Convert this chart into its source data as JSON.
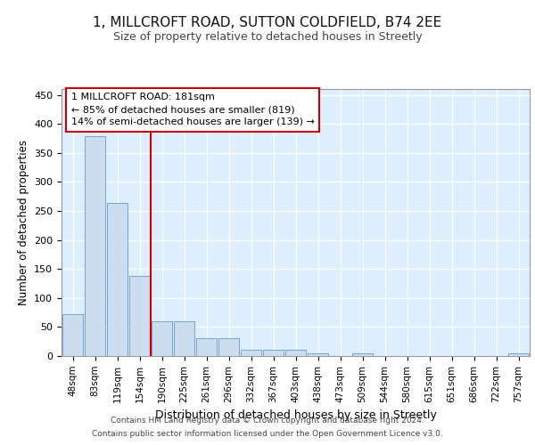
{
  "title1": "1, MILLCROFT ROAD, SUTTON COLDFIELD, B74 2EE",
  "title2": "Size of property relative to detached houses in Streetly",
  "xlabel": "Distribution of detached houses by size in Streetly",
  "ylabel": "Number of detached properties",
  "bar_color": "#ccddf0",
  "bar_edge_color": "#6699cc",
  "bg_color": "#ddeeff",
  "vline_color": "#cc0000",
  "vline_x_idx": 4,
  "categories": [
    "48sqm",
    "83sqm",
    "119sqm",
    "154sqm",
    "190sqm",
    "225sqm",
    "261sqm",
    "296sqm",
    "332sqm",
    "367sqm",
    "403sqm",
    "438sqm",
    "473sqm",
    "509sqm",
    "544sqm",
    "580sqm",
    "615sqm",
    "651sqm",
    "686sqm",
    "722sqm",
    "757sqm"
  ],
  "values": [
    72,
    378,
    263,
    138,
    60,
    60,
    30,
    30,
    10,
    10,
    10,
    5,
    0,
    5,
    0,
    0,
    0,
    0,
    0,
    0,
    5
  ],
  "annotation_line1": "1 MILLCROFT ROAD: 181sqm",
  "annotation_line2": "← 85% of detached houses are smaller (819)",
  "annotation_line3": "14% of semi-detached houses are larger (139) →",
  "annotation_box_color": "#ffffff",
  "annotation_box_edge": "#cc0000",
  "footer1": "Contains HM Land Registry data © Crown copyright and database right 2024.",
  "footer2": "Contains public sector information licensed under the Open Government Licence v3.0.",
  "ylim": [
    0,
    460
  ],
  "yticks": [
    0,
    50,
    100,
    150,
    200,
    250,
    300,
    350,
    400,
    450
  ]
}
